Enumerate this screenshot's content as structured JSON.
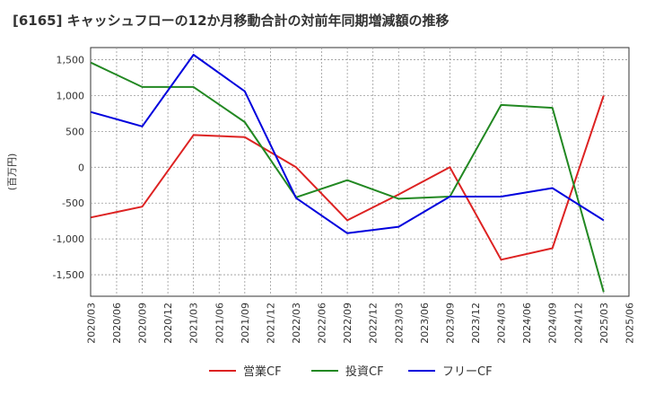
{
  "chart_data": {
    "type": "line",
    "title": "[6165]  キャッシュフローの12か月移動合計の対前年同期増減額の推移",
    "ylabel": "(百万円)",
    "xlabel": "",
    "ylim": [
      -1800,
      1670
    ],
    "yticks": [
      1500,
      1000,
      500,
      0,
      -500,
      -1000,
      -1500
    ],
    "ytick_labels": [
      "1,500",
      "1,000",
      "500",
      "0",
      "-500",
      "-1,000",
      "-1,500"
    ],
    "x_labels": [
      "2020/03",
      "2020/06",
      "2020/09",
      "2020/12",
      "2021/03",
      "2021/06",
      "2021/09",
      "2021/12",
      "2022/03",
      "2022/06",
      "2022/09",
      "2022/12",
      "2023/03",
      "2023/06",
      "2023/09",
      "2023/12",
      "2024/03",
      "2024/06",
      "2024/09",
      "2024/12",
      "2025/03",
      "2025/06"
    ],
    "x_points": [
      "2020/03",
      "2020/09",
      "2021/03",
      "2021/09",
      "2022/03",
      "2022/09",
      "2023/03",
      "2023/09",
      "2024/03",
      "2024/09",
      "2025/03"
    ],
    "grid": true,
    "legend_position": "bottom",
    "series": [
      {
        "name": "営業CF",
        "color": "#dd2222",
        "values": [
          -700,
          -550,
          450,
          420,
          0,
          -740,
          -380,
          0,
          -1290,
          -1130,
          1000
        ]
      },
      {
        "name": "投資CF",
        "color": "#228822",
        "values": [
          1460,
          1120,
          1120,
          630,
          -420,
          -180,
          -440,
          -410,
          870,
          830,
          -1740
        ]
      },
      {
        "name": "フリーCF",
        "color": "#0000dd",
        "values": [
          770,
          570,
          1570,
          1060,
          -430,
          -920,
          -830,
          -410,
          -410,
          -290,
          -740
        ]
      }
    ]
  }
}
